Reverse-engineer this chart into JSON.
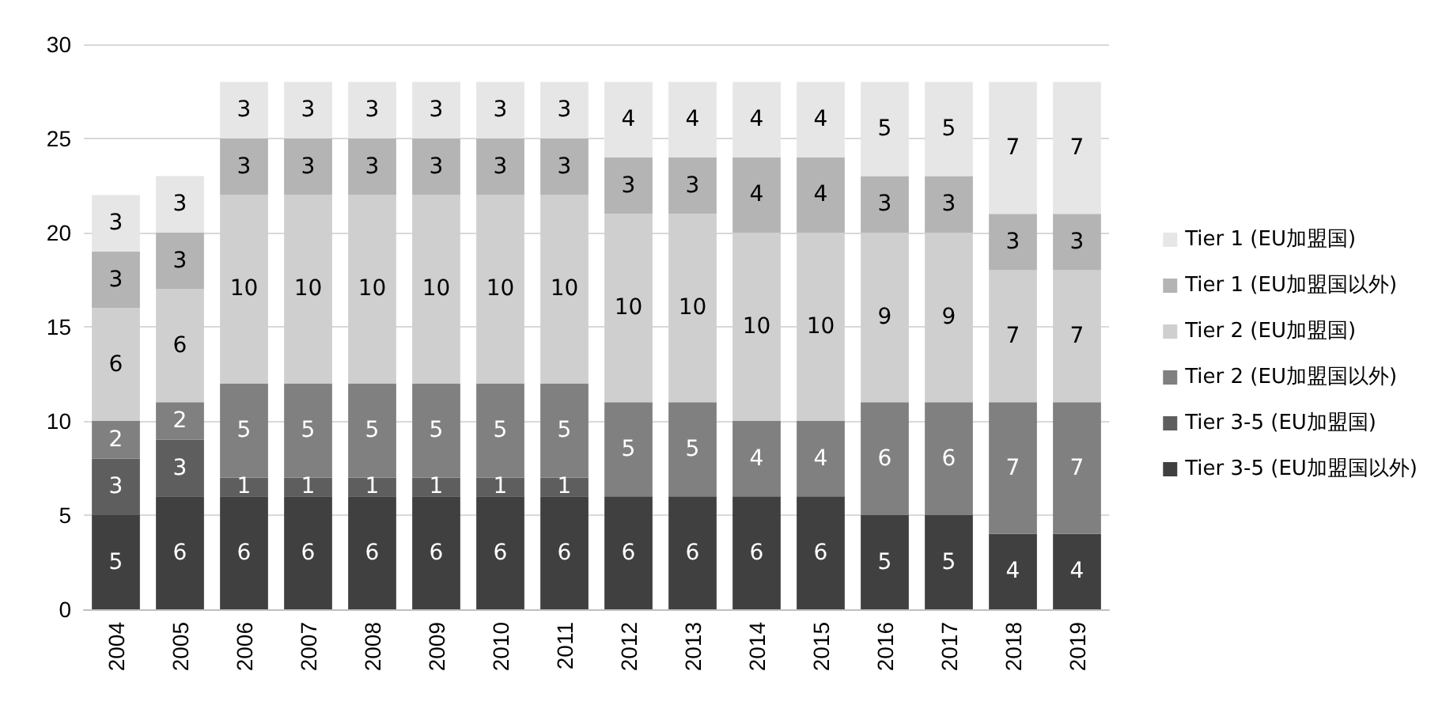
{
  "chart_data": {
    "type": "bar",
    "stacked": true,
    "categories": [
      "2004",
      "2005",
      "2006",
      "2007",
      "2008",
      "2009",
      "2010",
      "2011",
      "2012",
      "2013",
      "2014",
      "2015",
      "2016",
      "2017",
      "2018",
      "2019"
    ],
    "series": [
      {
        "name": "Tier 3-5 (EU加盟国以外)",
        "color": "#404040",
        "values": [
          5,
          6,
          6,
          6,
          6,
          6,
          6,
          6,
          6,
          6,
          6,
          6,
          5,
          5,
          4,
          4
        ]
      },
      {
        "name": "Tier 3-5 (EU加盟国)",
        "color": "#5e5e5e",
        "values": [
          3,
          3,
          1,
          1,
          1,
          1,
          1,
          1,
          null,
          null,
          null,
          null,
          null,
          null,
          null,
          null
        ]
      },
      {
        "name": "Tier 2 (EU加盟国以外)",
        "color": "#808080",
        "values": [
          2,
          2,
          5,
          5,
          5,
          5,
          5,
          5,
          5,
          5,
          4,
          4,
          6,
          6,
          7,
          7
        ]
      },
      {
        "name": "Tier 2 (EU加盟国)",
        "color": "#cfcfcf",
        "values": [
          6,
          6,
          10,
          10,
          10,
          10,
          10,
          10,
          10,
          10,
          10,
          10,
          9,
          9,
          7,
          7
        ]
      },
      {
        "name": "Tier 1 (EU加盟国以外)",
        "color": "#b4b4b4",
        "values": [
          3,
          3,
          3,
          3,
          3,
          3,
          3,
          3,
          3,
          3,
          4,
          4,
          3,
          3,
          3,
          3
        ]
      },
      {
        "name": "Tier 1 (EU加盟国)",
        "color": "#e6e6e6",
        "values": [
          3,
          3,
          3,
          3,
          3,
          3,
          3,
          3,
          4,
          4,
          4,
          4,
          5,
          5,
          7,
          7
        ]
      }
    ],
    "ylim": [
      0,
      30
    ],
    "yticks": [
      0,
      5,
      10,
      15,
      20,
      25,
      30
    ],
    "grid": "y",
    "legend": "right",
    "data_labels": true
  }
}
